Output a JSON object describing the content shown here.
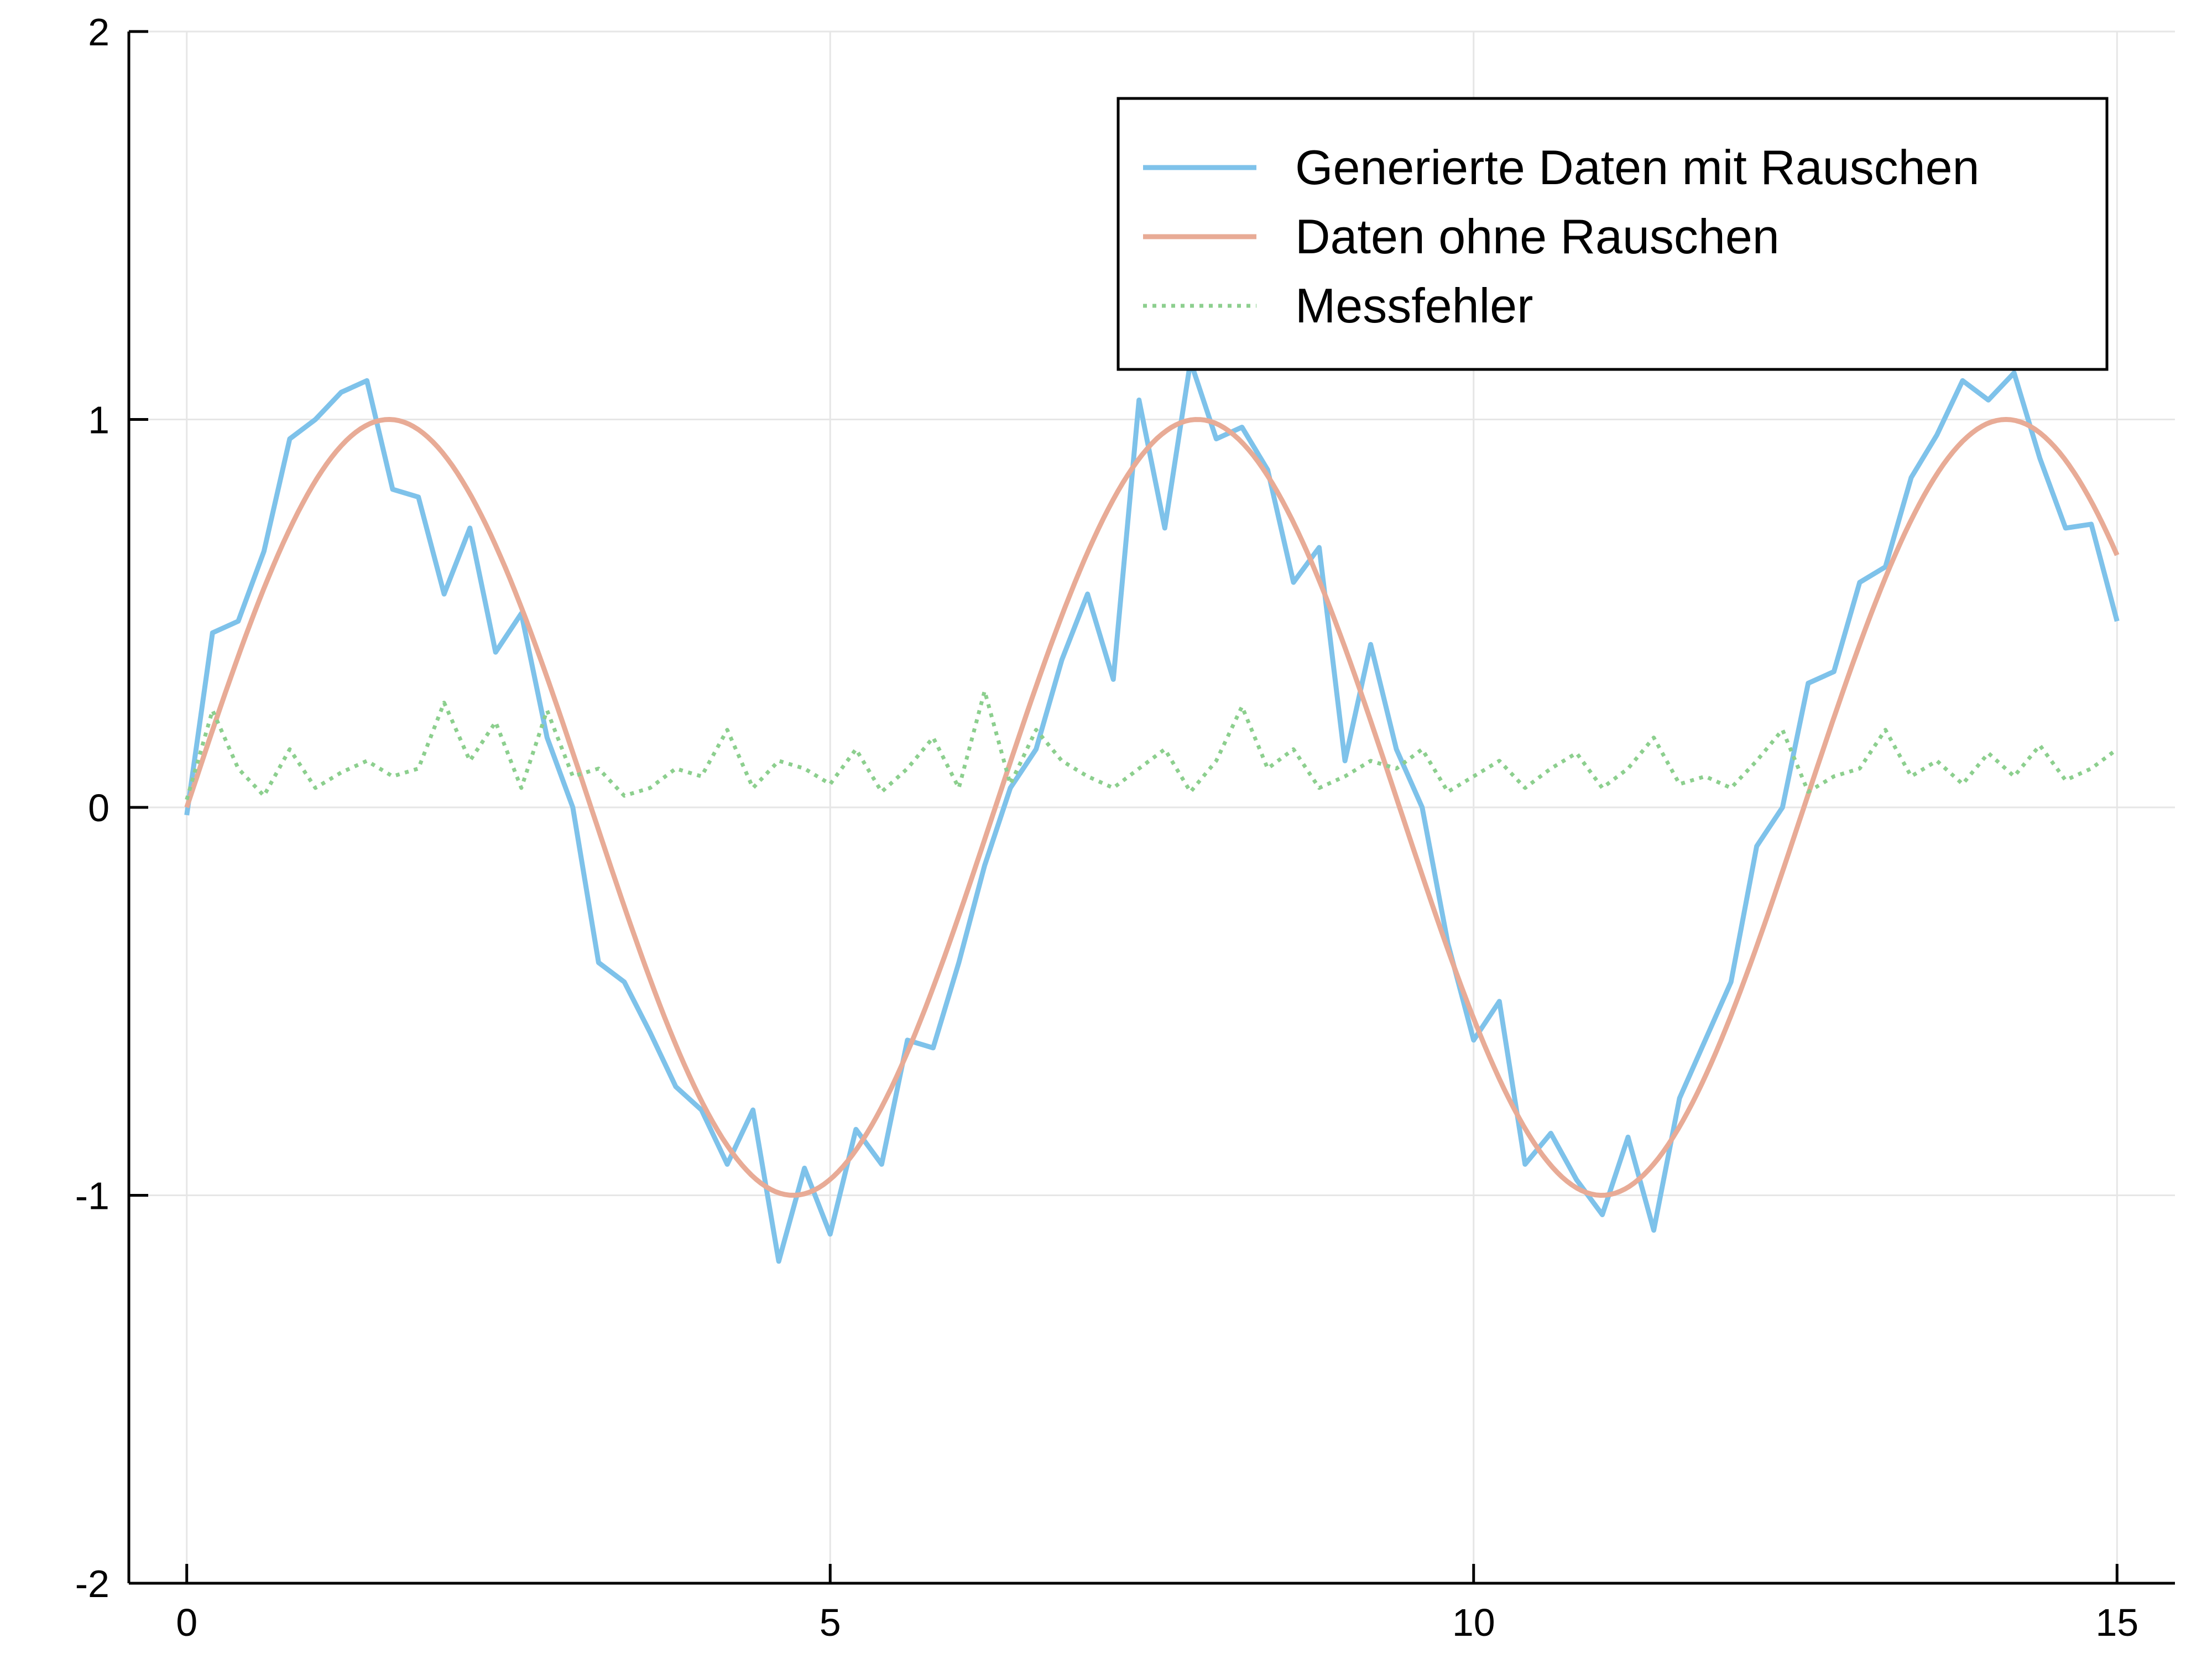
{
  "chart_data": {
    "type": "line",
    "title": "",
    "xlabel": "",
    "ylabel": "",
    "xlim": [
      -0.45,
      15.45
    ],
    "ylim": [
      -2,
      2
    ],
    "xticks": [
      0,
      5,
      10,
      15
    ],
    "yticks": [
      -2,
      -1,
      0,
      1,
      2
    ],
    "xtick_labels": [
      "0",
      "5",
      "10",
      "15"
    ],
    "ytick_labels": [
      "-2",
      "-1",
      "0",
      "1",
      "2"
    ],
    "grid": true,
    "legend_position": "top-right",
    "series": [
      {
        "name": "Generierte Daten mit Rauschen",
        "color": "#7ec2ea",
        "style": "solid",
        "x": [
          0,
          0.2,
          0.4,
          0.6,
          0.8,
          1.0,
          1.2,
          1.4,
          1.6,
          1.8,
          2.0,
          2.2,
          2.4,
          2.6,
          2.8,
          3.0,
          3.2,
          3.4,
          3.6,
          3.8,
          4.0,
          4.2,
          4.4,
          4.6,
          4.8,
          5.0,
          5.2,
          5.4,
          5.6,
          5.8,
          6.0,
          6.2,
          6.4,
          6.6,
          6.8,
          7.0,
          7.2,
          7.4,
          7.6,
          7.8,
          8.0,
          8.2,
          8.4,
          8.6,
          8.8,
          9.0,
          9.2,
          9.4,
          9.6,
          9.8,
          10.0,
          10.2,
          10.4,
          10.6,
          10.8,
          11.0,
          11.2,
          11.4,
          11.6,
          11.8,
          12.0,
          12.2,
          12.4,
          12.6,
          12.8,
          13.0,
          13.2,
          13.4,
          13.6,
          13.8,
          14.0,
          14.2,
          14.4,
          14.6,
          14.8,
          15.0
        ],
        "y": [
          -0.02,
          0.45,
          0.48,
          0.66,
          0.95,
          1.0,
          1.07,
          1.1,
          0.82,
          0.8,
          0.55,
          0.72,
          0.4,
          0.5,
          0.18,
          0.0,
          -0.4,
          -0.45,
          -0.58,
          -0.72,
          -0.78,
          -0.92,
          -0.78,
          -1.17,
          -0.93,
          -1.1,
          -0.83,
          -0.92,
          -0.6,
          -0.62,
          -0.4,
          -0.15,
          0.05,
          0.15,
          0.38,
          0.55,
          0.33,
          1.05,
          0.72,
          1.15,
          0.95,
          0.98,
          0.87,
          0.58,
          0.67,
          0.12,
          0.42,
          0.15,
          0.0,
          -0.35,
          -0.6,
          -0.5,
          -0.92,
          -0.84,
          -0.96,
          -1.05,
          -0.85,
          -1.09,
          -0.75,
          -0.6,
          -0.45,
          -0.1,
          0.0,
          0.32,
          0.35,
          0.58,
          0.62,
          0.85,
          0.96,
          1.1,
          1.05,
          1.12,
          0.9,
          0.72,
          0.73,
          0.48
        ]
      },
      {
        "name": "Daten ohne Rauschen",
        "color": "#e8ab96",
        "style": "solid",
        "function": "sin",
        "x_range": [
          0,
          15
        ]
      },
      {
        "name": "Messfehler",
        "color": "#8ccf8e",
        "style": "dotted",
        "x": [
          0,
          0.2,
          0.4,
          0.6,
          0.8,
          1.0,
          1.2,
          1.4,
          1.6,
          1.8,
          2.0,
          2.2,
          2.4,
          2.6,
          2.8,
          3.0,
          3.2,
          3.4,
          3.6,
          3.8,
          4.0,
          4.2,
          4.4,
          4.6,
          4.8,
          5.0,
          5.2,
          5.4,
          5.6,
          5.8,
          6.0,
          6.2,
          6.4,
          6.6,
          6.8,
          7.0,
          7.2,
          7.4,
          7.6,
          7.8,
          8.0,
          8.2,
          8.4,
          8.6,
          8.8,
          9.0,
          9.2,
          9.4,
          9.6,
          9.8,
          10.0,
          10.2,
          10.4,
          10.6,
          10.8,
          11.0,
          11.2,
          11.4,
          11.6,
          11.8,
          12.0,
          12.2,
          12.4,
          12.6,
          12.8,
          13.0,
          13.2,
          13.4,
          13.6,
          13.8,
          14.0,
          14.2,
          14.4,
          14.6,
          14.8,
          15.0
        ],
        "y": [
          0.02,
          0.25,
          0.1,
          0.03,
          0.15,
          0.05,
          0.09,
          0.12,
          0.08,
          0.1,
          0.27,
          0.12,
          0.22,
          0.05,
          0.25,
          0.08,
          0.1,
          0.03,
          0.05,
          0.1,
          0.08,
          0.2,
          0.05,
          0.12,
          0.1,
          0.06,
          0.15,
          0.04,
          0.1,
          0.18,
          0.05,
          0.3,
          0.06,
          0.2,
          0.12,
          0.08,
          0.05,
          0.1,
          0.15,
          0.04,
          0.12,
          0.26,
          0.1,
          0.15,
          0.05,
          0.08,
          0.12,
          0.1,
          0.15,
          0.04,
          0.08,
          0.12,
          0.05,
          0.1,
          0.14,
          0.05,
          0.1,
          0.18,
          0.06,
          0.08,
          0.05,
          0.12,
          0.2,
          0.04,
          0.08,
          0.1,
          0.2,
          0.08,
          0.12,
          0.06,
          0.14,
          0.08,
          0.16,
          0.07,
          0.1,
          0.15
        ]
      }
    ]
  }
}
